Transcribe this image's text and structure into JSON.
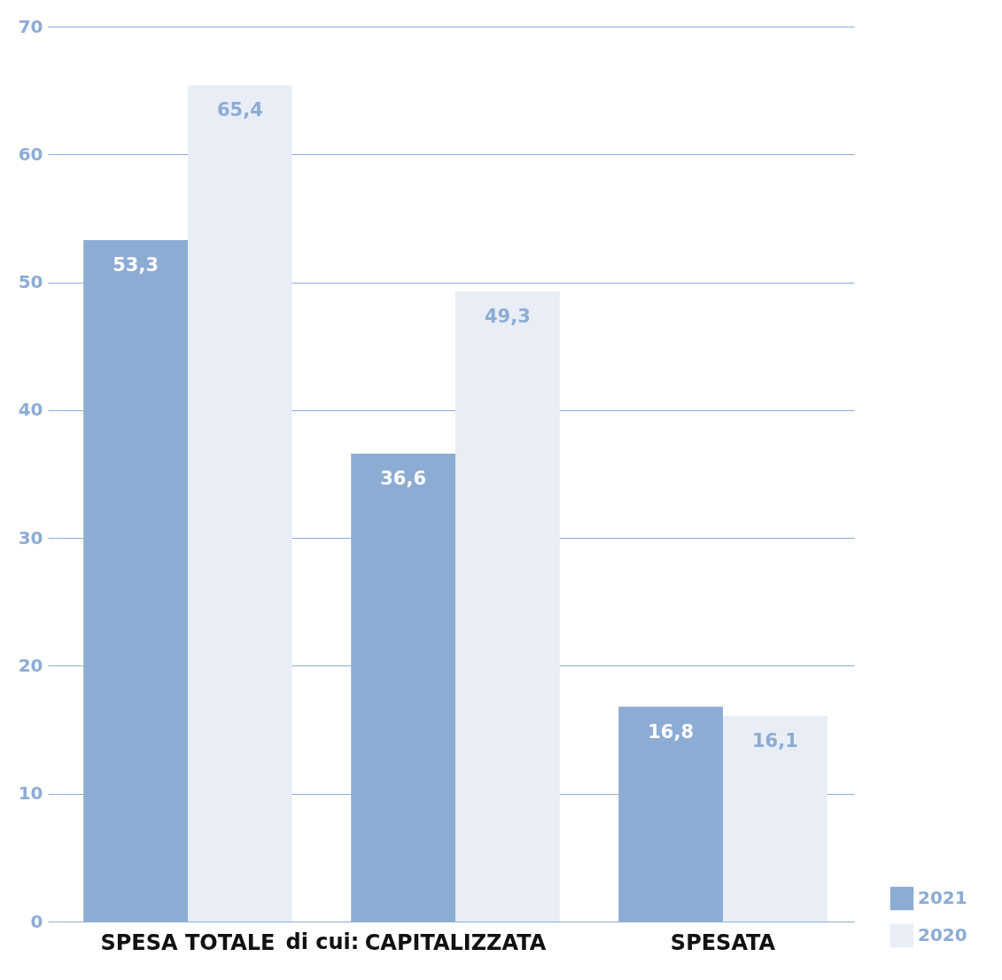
{
  "chart_data": {
    "type": "bar",
    "categories": [
      "SPESA TOTALE",
      "CAPITALIZZATA",
      "SPESATA"
    ],
    "series": [
      {
        "name": "2021",
        "color": "#8dacd4",
        "values": [
          53.3,
          36.6,
          16.8
        ],
        "value_labels": [
          "53,3",
          "36,6",
          "16,8"
        ]
      },
      {
        "name": "2020",
        "color": "#e8edf6",
        "values": [
          65.4,
          49.3,
          16.1
        ],
        "value_labels": [
          "65,4",
          "49,3",
          "16,1"
        ]
      }
    ],
    "ylim": [
      0,
      70
    ],
    "yticks": [
      0,
      10,
      20,
      30,
      40,
      50,
      60,
      70
    ],
    "grid": "y",
    "legend": "bottom right",
    "annotations": [
      "di cui:"
    ]
  }
}
